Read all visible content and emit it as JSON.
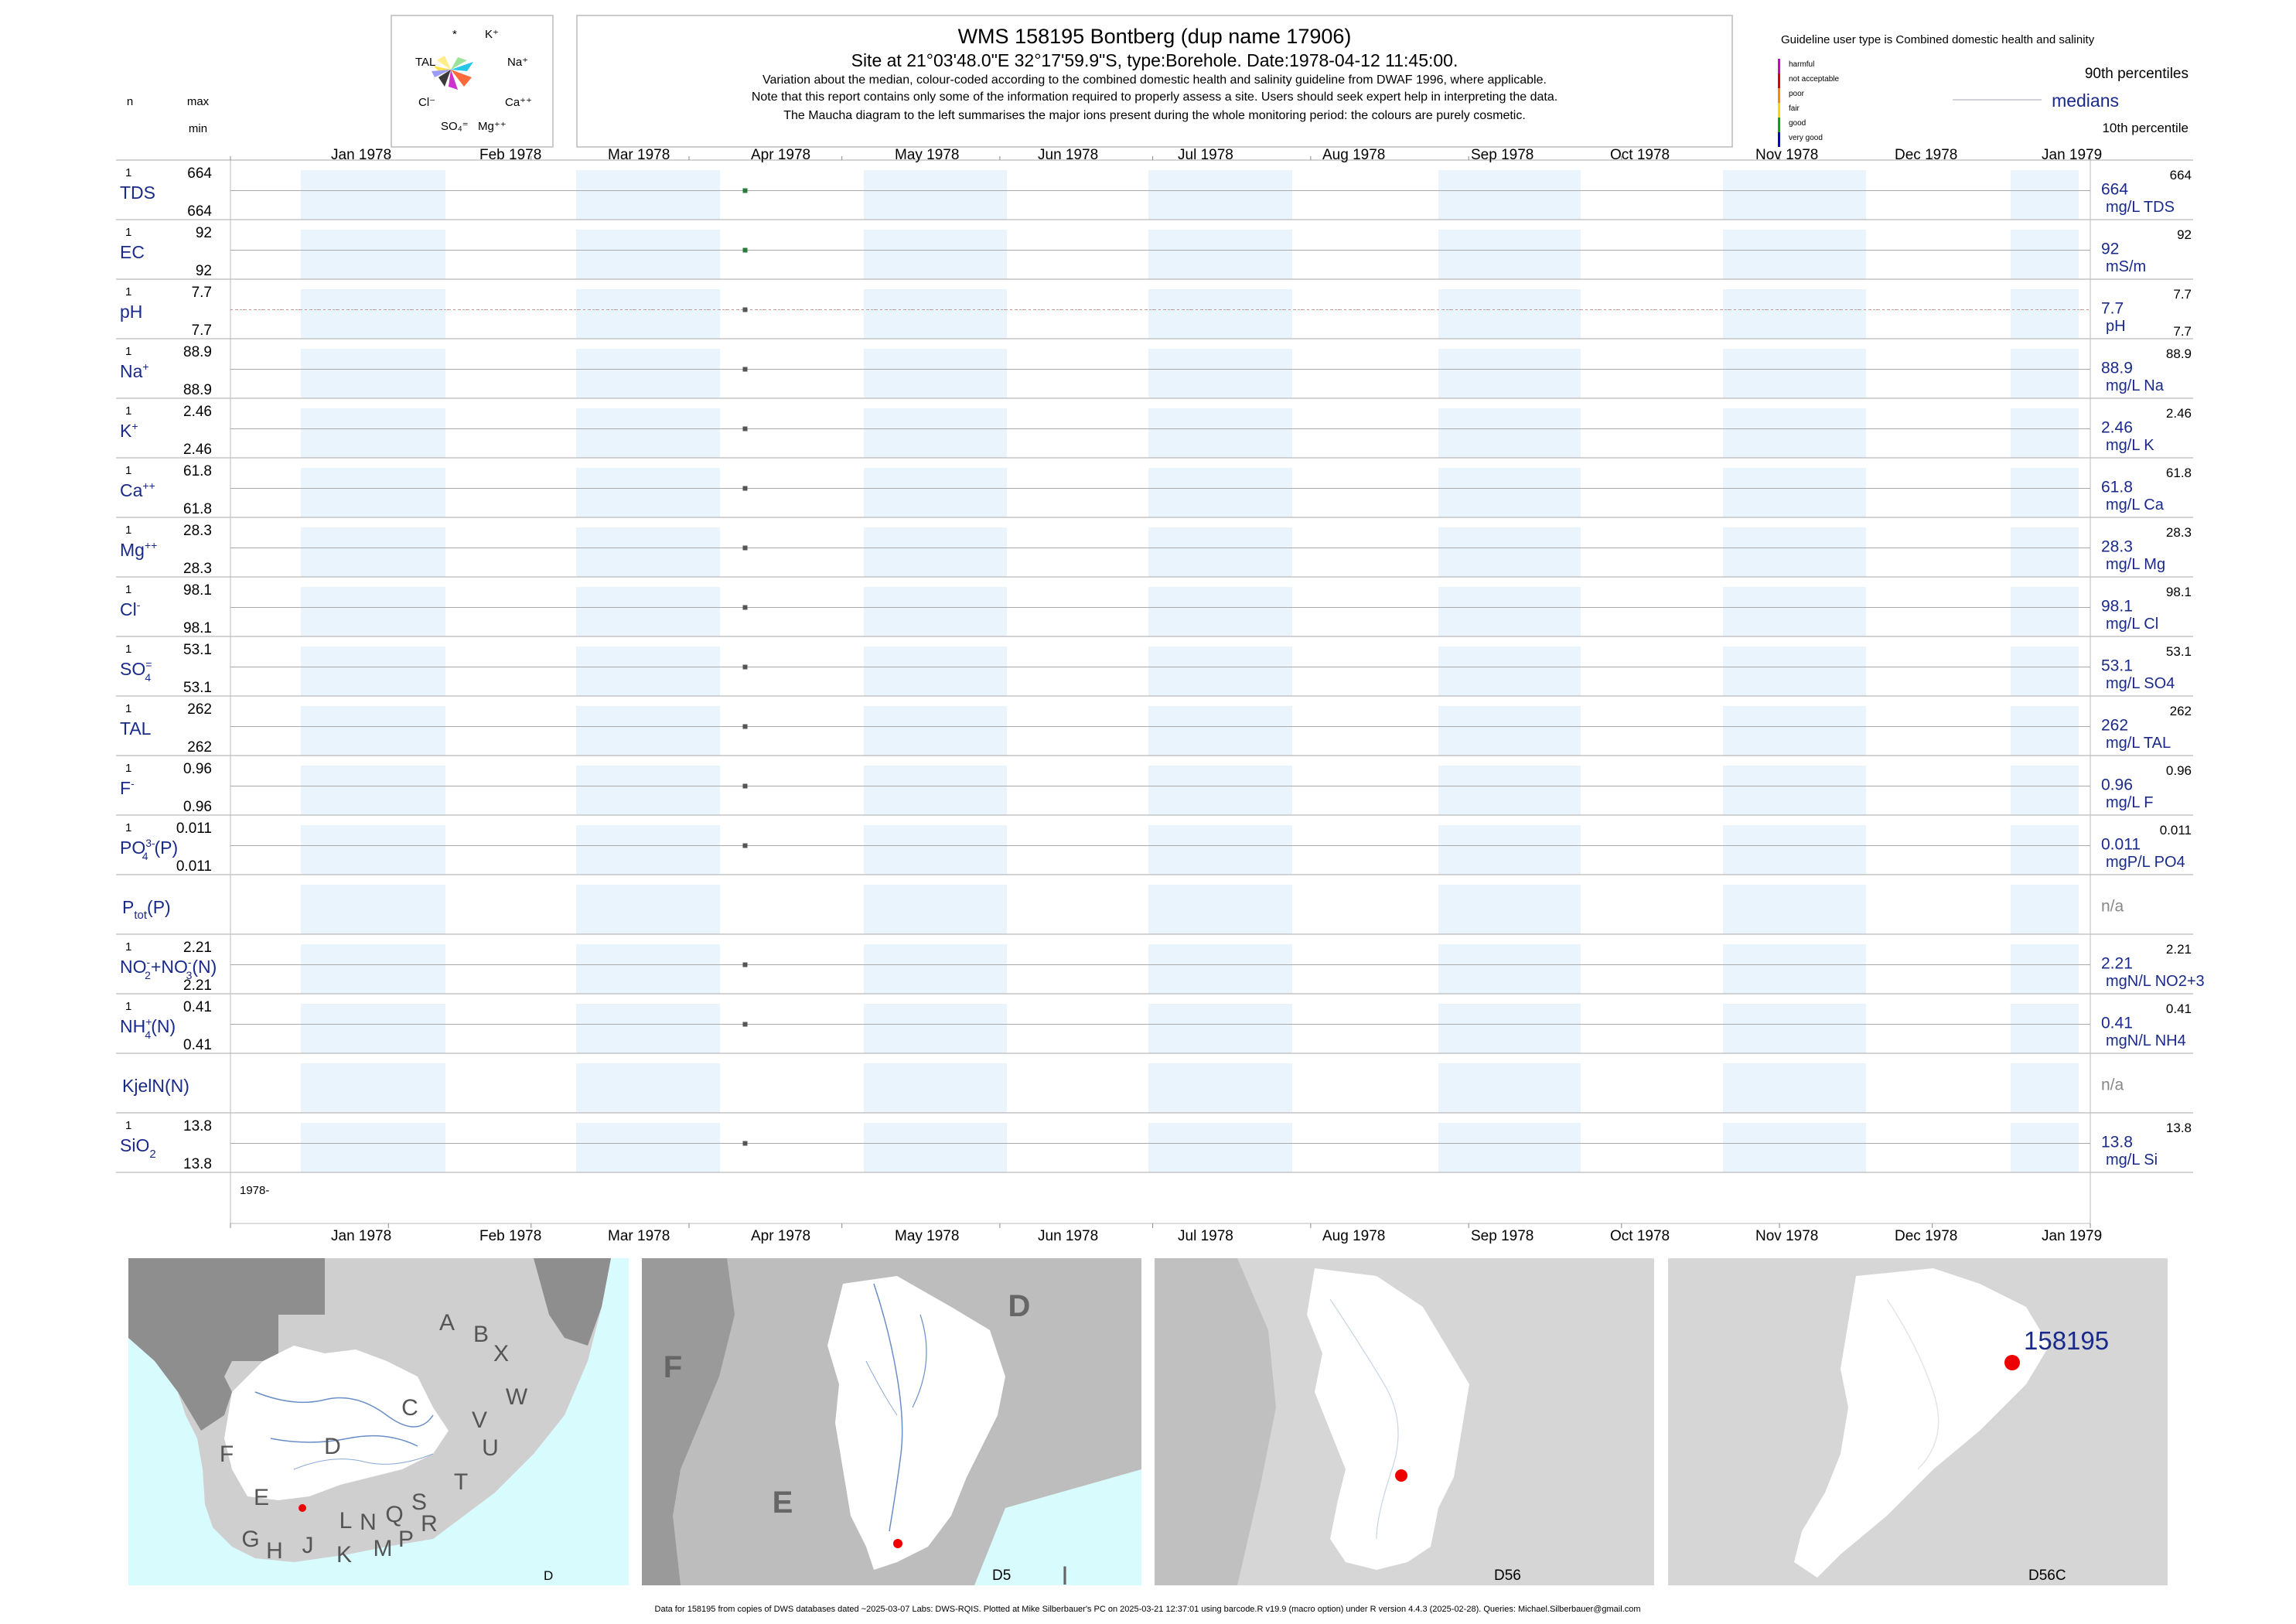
{
  "header": {
    "title": "WMS 158195  Bontberg (dup name 17906)",
    "subtitle": "Site at 21°03'48.0\"E 32°17'59.9\"S, type:Borehole. Date:1978-04-12 11:45:00.",
    "notes": [
      "Variation about the median,  colour-coded according to the combined domestic health and salinity guideline from DWAF 1996, where applicable.",
      "Note that this report contains only some of the information required to properly assess a site. Users should seek expert help in interpreting the data.",
      "The Maucha diagram to the left summarises the major ions present during the whole monitoring period: the colours are purely cosmetic."
    ]
  },
  "maucha": {
    "labels": [
      "*",
      "K⁺",
      "TAL",
      "Na⁺",
      "Cl⁻",
      "Ca⁺⁺",
      "SO₄⁼",
      "Mg⁺⁺"
    ]
  },
  "legend": {
    "guideline_text": "Guideline user type is Combined domestic health and salinity",
    "classes": [
      "harmful",
      "not acceptable",
      "poor",
      "fair",
      "good",
      "very good"
    ],
    "class_colors": [
      "#cc00cc",
      "#dd0000",
      "#ff8800",
      "#ffd400",
      "#00aa00",
      "#0000cc"
    ],
    "p90": "90th percentiles",
    "medians": "medians",
    "p10": "10th percentile"
  },
  "left_headers": {
    "n": "n",
    "max": "max",
    "min": "min"
  },
  "months_top": [
    "Jan 1978",
    "Feb 1978",
    "Mar 1978",
    "Apr 1978",
    "May 1978",
    "Jun 1978",
    "Jul 1978",
    "Aug 1978",
    "Sep 1978",
    "Oct 1978",
    "Nov 1978",
    "Dec 1978",
    "Jan 1979"
  ],
  "year_label": "1978-",
  "chart_data": {
    "type": "scatter",
    "x_axis": {
      "type": "date",
      "start": "1978-01-01",
      "end": "1979-01-01"
    },
    "sample_date": "1978-04-12",
    "variables": [
      {
        "key": "TDS",
        "n": "1",
        "max": "664",
        "min": "664",
        "median": "664",
        "p90": "664",
        "p10": "",
        "unit": "mg/L TDS",
        "value": 664,
        "color": "#2a7a3a"
      },
      {
        "key": "EC",
        "n": "1",
        "max": "92",
        "min": "92",
        "median": "92",
        "p90": "92",
        "p10": "",
        "unit": "mS/m",
        "value": 92,
        "color": "#2a7a3a"
      },
      {
        "key": "pH",
        "n": "1",
        "max": "7.7",
        "min": "7.7",
        "median": "7.7",
        "p90": "7.7",
        "p10": "7.7",
        "unit": "pH",
        "value": 7.7,
        "color": "#555555"
      },
      {
        "key": "Na",
        "n": "1",
        "max": "88.9",
        "min": "88.9",
        "median": "88.9",
        "p90": "88.9",
        "p10": "",
        "unit": "mg/L Na",
        "value": 88.9,
        "color": "#555555"
      },
      {
        "key": "K",
        "n": "1",
        "max": "2.46",
        "min": "2.46",
        "median": "2.46",
        "p90": "2.46",
        "p10": "",
        "unit": "mg/L K",
        "value": 2.46,
        "color": "#555555"
      },
      {
        "key": "Ca",
        "n": "1",
        "max": "61.8",
        "min": "61.8",
        "median": "61.8",
        "p90": "61.8",
        "p10": "",
        "unit": "mg/L Ca",
        "value": 61.8,
        "color": "#555555"
      },
      {
        "key": "Mg",
        "n": "1",
        "max": "28.3",
        "min": "28.3",
        "median": "28.3",
        "p90": "28.3",
        "p10": "",
        "unit": "mg/L Mg",
        "value": 28.3,
        "color": "#555555"
      },
      {
        "key": "Cl",
        "n": "1",
        "max": "98.1",
        "min": "98.1",
        "median": "98.1",
        "p90": "98.1",
        "p10": "",
        "unit": "mg/L Cl",
        "value": 98.1,
        "color": "#555555"
      },
      {
        "key": "SO4",
        "n": "1",
        "max": "53.1",
        "min": "53.1",
        "median": "53.1",
        "p90": "53.1",
        "p10": "",
        "unit": "mg/L SO4",
        "value": 53.1,
        "color": "#555555"
      },
      {
        "key": "TAL",
        "n": "1",
        "max": "262",
        "min": "262",
        "median": "262",
        "p90": "262",
        "p10": "",
        "unit": "mg/L TAL",
        "value": 262,
        "color": "#555555"
      },
      {
        "key": "F",
        "n": "1",
        "max": "0.96",
        "min": "0.96",
        "median": "0.96",
        "p90": "0.96",
        "p10": "",
        "unit": "mg/L F",
        "value": 0.96,
        "color": "#555555"
      },
      {
        "key": "PO4",
        "n": "1",
        "max": "0.011",
        "min": "0.011",
        "median": "0.011",
        "p90": "0.011",
        "p10": "",
        "unit": "mgP/L PO4",
        "value": 0.011,
        "color": "#555555"
      },
      {
        "key": "Ptot",
        "n": "",
        "max": "",
        "min": "",
        "median": "n/a",
        "p90": "",
        "p10": "",
        "unit": "",
        "value": null,
        "color": "#555555"
      },
      {
        "key": "NOx",
        "n": "1",
        "max": "2.21",
        "min": "2.21",
        "median": "2.21",
        "p90": "2.21",
        "p10": "",
        "unit": "mgN/L NO2+3",
        "value": 2.21,
        "color": "#555555"
      },
      {
        "key": "NH4",
        "n": "1",
        "max": "0.41",
        "min": "0.41",
        "median": "0.41",
        "p90": "0.41",
        "p10": "",
        "unit": "mgN/L NH4",
        "value": 0.41,
        "color": "#555555"
      },
      {
        "key": "Kjel",
        "n": "",
        "max": "",
        "min": "",
        "median": "n/a",
        "p90": "",
        "p10": "",
        "unit": "",
        "value": null,
        "color": "#555555"
      },
      {
        "key": "SiO2",
        "n": "1",
        "max": "13.8",
        "min": "13.8",
        "median": "13.8",
        "p90": "13.8",
        "p10": "",
        "unit": "mg/L Si",
        "value": 13.8,
        "color": "#555555"
      }
    ]
  },
  "maps": {
    "labels": [
      "D",
      "D5",
      "D56",
      "D56C"
    ],
    "site_label": "158195",
    "map1_letters": [
      "A",
      "B",
      "X",
      "C",
      "W",
      "V",
      "U",
      "D",
      "T",
      "F",
      "E",
      "J",
      "L",
      "N",
      "Q",
      "S",
      "R",
      "G",
      "H",
      "K",
      "M",
      "P"
    ],
    "map2_letters": [
      "D",
      "F",
      "E"
    ],
    "map2_extra": "I",
    "ocean_color": "#d8fbfe",
    "catchment_color": "#ffffff",
    "site_color": "#ee0000"
  },
  "footer": "Data for 158195 from copies of DWS databases dated ~2025-03-07 Labs: DWS-RQIS. Plotted at Mike Silberbauer's PC on 2025-03-21 12:37:01 using barcode.R v19.9 (macro option) under R version 4.4.3 (2025-02-28). Queries: Michael.Silberbauer@gmail.com"
}
